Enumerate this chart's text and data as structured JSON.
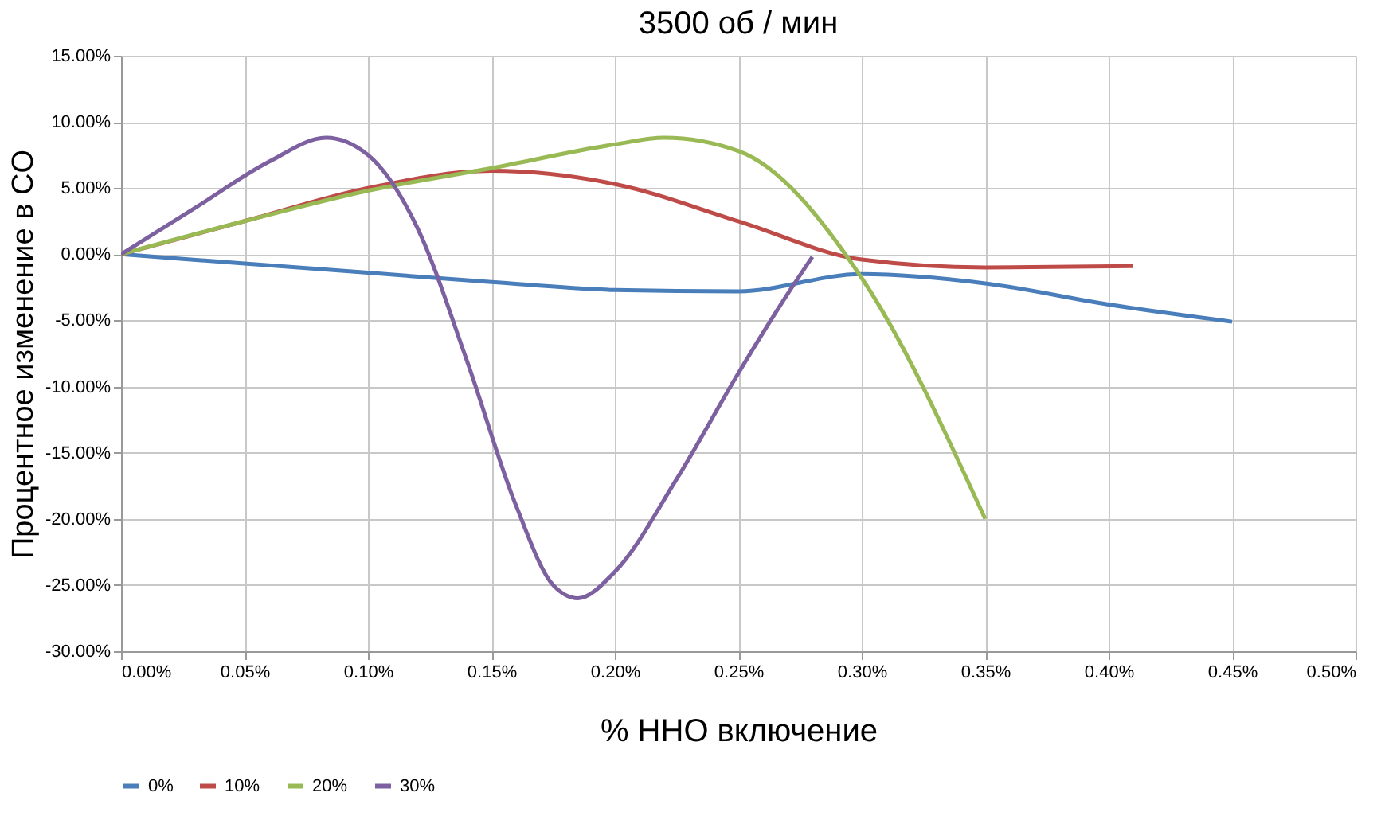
{
  "chart_data": {
    "type": "line",
    "title": "3500 об / мин",
    "xlabel": "% HHO включение",
    "ylabel": "Процентное изменение в CO",
    "xlim": [
      0,
      0.5
    ],
    "xticks": [
      {
        "value": 0,
        "label": "0.00%"
      },
      {
        "value": 0.05,
        "label": "0.05%"
      },
      {
        "value": 0.1,
        "label": "0.10%"
      },
      {
        "value": 0.15,
        "label": "0.15%"
      },
      {
        "value": 0.2,
        "label": "0.20%"
      },
      {
        "value": 0.25,
        "label": "0.25%"
      },
      {
        "value": 0.3,
        "label": "0.30%"
      },
      {
        "value": 0.35,
        "label": "0.35%"
      },
      {
        "value": 0.4,
        "label": "0.40%"
      },
      {
        "value": 0.45,
        "label": "0.45%"
      },
      {
        "value": 0.5,
        "label": "0.50%"
      }
    ],
    "ylim": [
      -30,
      15
    ],
    "yticks": [
      {
        "value": -30,
        "label": "-30.00%"
      },
      {
        "value": -25,
        "label": "-25.00%"
      },
      {
        "value": -20,
        "label": "-20.00%"
      },
      {
        "value": -15,
        "label": "-15.00%"
      },
      {
        "value": -10,
        "label": "-10.00%"
      },
      {
        "value": -5,
        "label": "-5.00%"
      },
      {
        "value": 0,
        "label": "0.00%"
      },
      {
        "value": 5,
        "label": "5.00%"
      },
      {
        "value": 10,
        "label": "10.00%"
      },
      {
        "value": 15,
        "label": "15.00%"
      }
    ],
    "grid": true,
    "legend": "bottom",
    "marker": "none",
    "line_style": "solid",
    "series": [
      {
        "name": "0%",
        "color": "#4a7ebb",
        "x": [
          0,
          0.05,
          0.1,
          0.15,
          0.2,
          0.25,
          0.3,
          0.35,
          0.4,
          0.45
        ],
        "values": [
          0,
          -0.7,
          -1.4,
          -2.1,
          -2.7,
          -2.8,
          -1.5,
          -2.2,
          -3.8,
          -5.1
        ]
      },
      {
        "name": "10%",
        "color": "#be4b48",
        "x": [
          0,
          0.05,
          0.1,
          0.15,
          0.2,
          0.25,
          0.3,
          0.35,
          0.41
        ],
        "values": [
          0,
          2.5,
          5,
          6.3,
          5.3,
          2.5,
          -0.4,
          -1,
          -0.9
        ]
      },
      {
        "name": "20%",
        "color": "#98b954",
        "x": [
          0,
          0.05,
          0.1,
          0.15,
          0.2,
          0.22,
          0.25,
          0.3,
          0.35
        ],
        "values": [
          0,
          2.5,
          4.8,
          6.5,
          8.3,
          8.8,
          7.8,
          -1.8,
          -20
        ]
      },
      {
        "name": "30%",
        "color": "#7d60a0",
        "x": [
          0,
          0.03,
          0.06,
          0.083,
          0.1,
          0.12,
          0.14,
          0.16,
          0.175,
          0.185,
          0.2,
          0.225,
          0.25,
          0.27,
          0.28
        ],
        "values": [
          0,
          3.5,
          7,
          8.8,
          7.5,
          2,
          -8,
          -19,
          -25,
          -26,
          -24,
          -17,
          -9,
          -3,
          -0.2
        ]
      }
    ]
  }
}
